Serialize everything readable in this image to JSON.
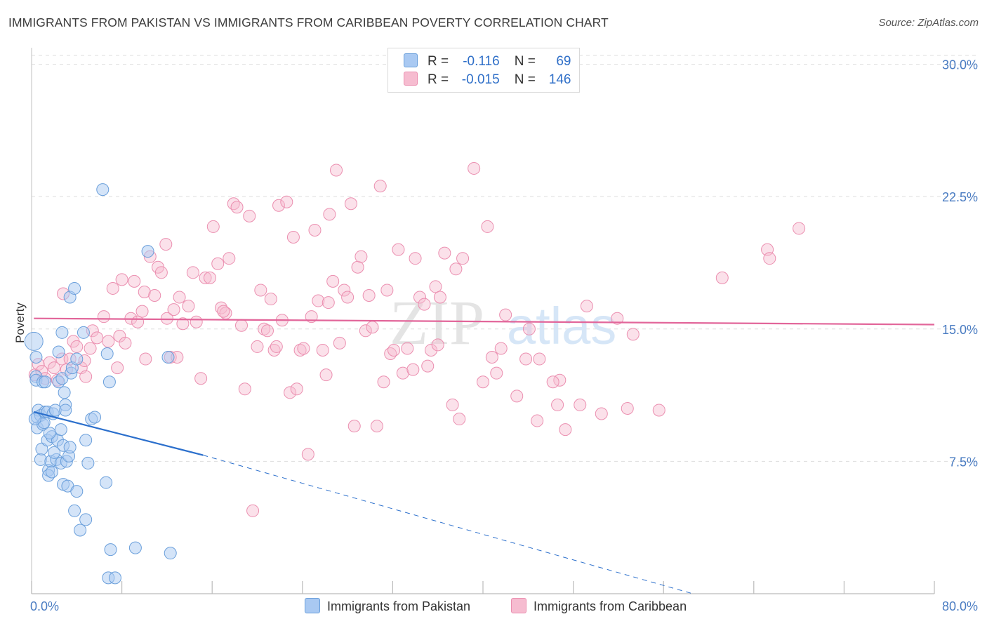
{
  "header": {
    "title": "IMMIGRANTS FROM PAKISTAN VS IMMIGRANTS FROM CARIBBEAN POVERTY CORRELATION CHART",
    "source": "Source: ZipAtlas.com"
  },
  "legend": {
    "r_label": "R =",
    "n_label": "N =",
    "pakistan": {
      "r": "-0.116",
      "n": "69"
    },
    "caribbean": {
      "r": "-0.015",
      "n": "146"
    }
  },
  "colors": {
    "pakistan_fill": "#a9c9f2",
    "pakistan_stroke": "#6a9fdb",
    "pakistan_line": "#2b6fcc",
    "caribbean_fill": "#f6bcd0",
    "caribbean_stroke": "#eb8fb0",
    "caribbean_line": "#e2669a",
    "tick": "#4a7cc2",
    "grid": "#dddddd"
  },
  "watermark": {
    "zip": "ZIP",
    "atlas": "atlas"
  },
  "chart_data": {
    "type": "scatter",
    "title": "IMMIGRANTS FROM PAKISTAN VS IMMIGRANTS FROM CARIBBEAN POVERTY CORRELATION CHART",
    "xlabel": "",
    "ylabel": "Poverty",
    "xlim": [
      0,
      80
    ],
    "ylim": [
      0,
      30.5
    ],
    "x_tick_labels": [
      "0.0%",
      "80.0%"
    ],
    "y_ticks": [
      7.5,
      15.0,
      22.5,
      30.0
    ],
    "y_tick_labels": [
      "7.5%",
      "15.0%",
      "22.5%",
      "30.0%"
    ],
    "series": [
      {
        "name": "Immigrants from Pakistan",
        "trend": {
          "x0": 0.2,
          "y0": 10.3,
          "x1": 15.2,
          "y1": 7.85,
          "dash_to_x": 58.6,
          "dash_to_y": 0.0
        },
        "points": [
          [
            0.2,
            14.3
          ],
          [
            0.4,
            13.4
          ],
          [
            0.4,
            12.3
          ],
          [
            0.4,
            12.1
          ],
          [
            0.5,
            10.0
          ],
          [
            0.5,
            9.4
          ],
          [
            0.6,
            10.4
          ],
          [
            0.8,
            10.1
          ],
          [
            0.8,
            7.6
          ],
          [
            0.9,
            8.2
          ],
          [
            1.0,
            9.6
          ],
          [
            1.0,
            12.0
          ],
          [
            1.1,
            9.7
          ],
          [
            1.2,
            10.3
          ],
          [
            1.2,
            12.0
          ],
          [
            1.4,
            8.7
          ],
          [
            1.4,
            10.3
          ],
          [
            1.5,
            7.0
          ],
          [
            1.5,
            6.7
          ],
          [
            1.7,
            7.5
          ],
          [
            1.8,
            6.9
          ],
          [
            1.8,
            8.9
          ],
          [
            1.9,
            10.2
          ],
          [
            2.1,
            10.4
          ],
          [
            2.2,
            7.6
          ],
          [
            2.3,
            8.7
          ],
          [
            2.4,
            13.7
          ],
          [
            2.4,
            12.0
          ],
          [
            2.6,
            7.4
          ],
          [
            2.6,
            9.3
          ],
          [
            2.7,
            12.2
          ],
          [
            2.7,
            14.8
          ],
          [
            2.8,
            8.4
          ],
          [
            2.8,
            6.2
          ],
          [
            2.9,
            11.4
          ],
          [
            3.0,
            10.7
          ],
          [
            3.0,
            10.4
          ],
          [
            3.1,
            7.5
          ],
          [
            3.2,
            6.1
          ],
          [
            3.3,
            7.8
          ],
          [
            3.4,
            8.3
          ],
          [
            3.4,
            16.8
          ],
          [
            3.5,
            12.5
          ],
          [
            3.6,
            12.8
          ],
          [
            3.8,
            4.7
          ],
          [
            3.8,
            17.3
          ],
          [
            4.0,
            13.3
          ],
          [
            4.0,
            5.8
          ],
          [
            4.3,
            3.6
          ],
          [
            4.6,
            14.8
          ],
          [
            4.8,
            8.7
          ],
          [
            4.8,
            4.2
          ],
          [
            5.0,
            7.4
          ],
          [
            5.3,
            9.9
          ],
          [
            5.6,
            10.0
          ],
          [
            6.3,
            22.9
          ],
          [
            6.6,
            6.3
          ],
          [
            6.7,
            13.6
          ],
          [
            6.9,
            12.0
          ],
          [
            7.0,
            2.5
          ],
          [
            6.8,
            0.9
          ],
          [
            7.4,
            0.9
          ],
          [
            9.2,
            2.6
          ],
          [
            10.3,
            19.4
          ],
          [
            12.1,
            13.4
          ],
          [
            12.3,
            2.3
          ],
          [
            0.3,
            9.9
          ],
          [
            1.6,
            9.1
          ],
          [
            2.0,
            8.0
          ]
        ]
      },
      {
        "name": "Immigrants from Caribbean",
        "trend": {
          "x0": 0.2,
          "y0": 15.6,
          "x1": 80.0,
          "y1": 15.25
        },
        "points": [
          [
            0.3,
            12.4
          ],
          [
            0.6,
            13.0
          ],
          [
            0.9,
            12.6
          ],
          [
            1.2,
            12.2
          ],
          [
            1.6,
            13.1
          ],
          [
            2.0,
            12.8
          ],
          [
            2.3,
            12.1
          ],
          [
            2.7,
            13.3
          ],
          [
            2.8,
            17.0
          ],
          [
            3.1,
            12.7
          ],
          [
            3.4,
            13.3
          ],
          [
            3.7,
            14.3
          ],
          [
            4.0,
            14.0
          ],
          [
            4.4,
            12.8
          ],
          [
            4.7,
            13.2
          ],
          [
            4.8,
            12.3
          ],
          [
            5.2,
            13.9
          ],
          [
            5.4,
            14.9
          ],
          [
            5.8,
            14.5
          ],
          [
            6.4,
            15.7
          ],
          [
            6.8,
            14.3
          ],
          [
            7.2,
            17.3
          ],
          [
            7.6,
            12.8
          ],
          [
            7.8,
            14.6
          ],
          [
            8.0,
            17.8
          ],
          [
            8.3,
            14.2
          ],
          [
            8.8,
            15.6
          ],
          [
            9.1,
            17.7
          ],
          [
            9.4,
            15.4
          ],
          [
            9.8,
            16.0
          ],
          [
            10.0,
            17.1
          ],
          [
            10.1,
            13.3
          ],
          [
            10.5,
            19.1
          ],
          [
            10.9,
            16.9
          ],
          [
            11.2,
            18.5
          ],
          [
            11.5,
            18.2
          ],
          [
            11.9,
            19.8
          ],
          [
            12.0,
            15.6
          ],
          [
            12.3,
            13.4
          ],
          [
            12.6,
            16.1
          ],
          [
            12.9,
            13.4
          ],
          [
            13.1,
            16.8
          ],
          [
            13.4,
            15.3
          ],
          [
            13.9,
            16.3
          ],
          [
            14.3,
            18.2
          ],
          [
            14.6,
            15.4
          ],
          [
            15.0,
            12.2
          ],
          [
            15.4,
            17.9
          ],
          [
            15.8,
            17.9
          ],
          [
            16.1,
            20.8
          ],
          [
            16.5,
            18.7
          ],
          [
            16.8,
            16.2
          ],
          [
            17.2,
            15.9
          ],
          [
            17.5,
            19.0
          ],
          [
            17.9,
            22.1
          ],
          [
            18.2,
            21.9
          ],
          [
            18.6,
            15.2
          ],
          [
            18.9,
            11.6
          ],
          [
            19.3,
            21.4
          ],
          [
            19.6,
            4.7
          ],
          [
            20.0,
            14.0
          ],
          [
            20.3,
            17.2
          ],
          [
            20.6,
            15.0
          ],
          [
            20.9,
            14.9
          ],
          [
            21.2,
            16.7
          ],
          [
            21.5,
            13.8
          ],
          [
            21.9,
            22.0
          ],
          [
            22.2,
            15.5
          ],
          [
            22.6,
            22.2
          ],
          [
            22.9,
            11.4
          ],
          [
            23.2,
            20.2
          ],
          [
            23.5,
            11.6
          ],
          [
            23.8,
            13.8
          ],
          [
            24.1,
            13.9
          ],
          [
            24.5,
            7.9
          ],
          [
            24.8,
            15.7
          ],
          [
            25.1,
            20.6
          ],
          [
            25.4,
            16.6
          ],
          [
            25.8,
            13.8
          ],
          [
            26.1,
            12.4
          ],
          [
            26.4,
            21.5
          ],
          [
            26.7,
            17.7
          ],
          [
            27.0,
            24.0
          ],
          [
            27.3,
            14.2
          ],
          [
            27.7,
            17.2
          ],
          [
            28.0,
            16.8
          ],
          [
            28.3,
            22.1
          ],
          [
            28.6,
            9.5
          ],
          [
            28.9,
            18.5
          ],
          [
            29.2,
            19.1
          ],
          [
            29.6,
            14.9
          ],
          [
            29.9,
            16.9
          ],
          [
            30.2,
            15.1
          ],
          [
            30.6,
            9.5
          ],
          [
            30.9,
            23.1
          ],
          [
            31.2,
            12.0
          ],
          [
            31.5,
            17.2
          ],
          [
            31.8,
            13.6
          ],
          [
            32.1,
            13.8
          ],
          [
            32.5,
            19.5
          ],
          [
            32.9,
            12.5
          ],
          [
            33.3,
            13.9
          ],
          [
            34.0,
            19.0
          ],
          [
            34.4,
            16.8
          ],
          [
            34.8,
            16.4
          ],
          [
            35.1,
            12.9
          ],
          [
            35.4,
            13.8
          ],
          [
            35.8,
            17.4
          ],
          [
            36.2,
            16.8
          ],
          [
            36.6,
            19.3
          ],
          [
            37.3,
            10.7
          ],
          [
            37.6,
            18.4
          ],
          [
            37.9,
            9.9
          ],
          [
            38.2,
            19.0
          ],
          [
            39.2,
            24.1
          ],
          [
            40.0,
            12.0
          ],
          [
            40.4,
            20.8
          ],
          [
            40.8,
            13.4
          ],
          [
            41.2,
            12.5
          ],
          [
            41.6,
            13.9
          ],
          [
            42.0,
            15.8
          ],
          [
            43.0,
            11.2
          ],
          [
            44.1,
            15.0
          ],
          [
            44.8,
            9.8
          ],
          [
            45.0,
            13.3
          ],
          [
            46.6,
            10.7
          ],
          [
            46.8,
            12.1
          ],
          [
            47.3,
            9.3
          ],
          [
            48.6,
            10.7
          ],
          [
            49.2,
            16.3
          ],
          [
            50.5,
            10.2
          ],
          [
            51.9,
            15.6
          ],
          [
            52.8,
            10.5
          ],
          [
            53.3,
            14.7
          ],
          [
            55.6,
            10.4
          ],
          [
            61.2,
            17.9
          ],
          [
            65.2,
            19.5
          ],
          [
            65.4,
            19.0
          ],
          [
            68.0,
            20.7
          ],
          [
            17.0,
            16.0
          ],
          [
            21.7,
            14.0
          ],
          [
            26.3,
            16.5
          ],
          [
            33.8,
            12.7
          ],
          [
            36.0,
            14.1
          ],
          [
            43.8,
            13.3
          ],
          [
            46.2,
            12.0
          ]
        ]
      }
    ]
  },
  "bottom_legend": {
    "pakistan": "Immigrants from Pakistan",
    "caribbean": "Immigrants from Caribbean"
  }
}
